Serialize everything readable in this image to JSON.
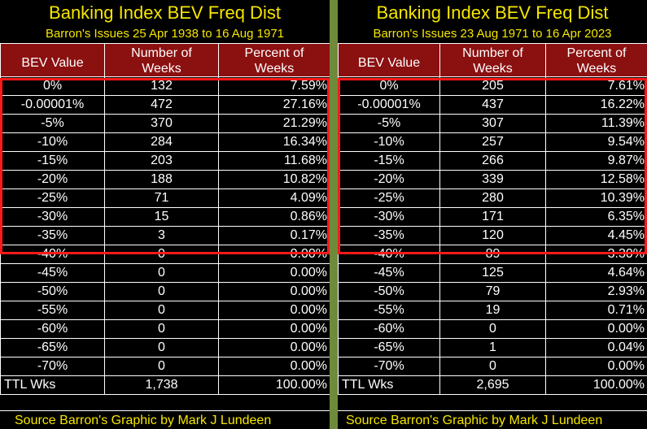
{
  "left": {
    "title": "Banking Index BEV Freq Dist",
    "subtitle": "Barron's Issues 25 Apr 1938 to 16 Aug 1971",
    "headers": {
      "bev": "BEV Value",
      "weeks_1": "Number of",
      "weeks_2": "Weeks",
      "pct_1": "Percent of",
      "pct_2": "Weeks"
    },
    "rows": [
      {
        "bev": "0%",
        "num": "132",
        "pct": "7.59%"
      },
      {
        "bev": "-0.00001%",
        "num": "472",
        "pct": "27.16%"
      },
      {
        "bev": "-5%",
        "num": "370",
        "pct": "21.29%"
      },
      {
        "bev": "-10%",
        "num": "284",
        "pct": "16.34%"
      },
      {
        "bev": "-15%",
        "num": "203",
        "pct": "11.68%"
      },
      {
        "bev": "-20%",
        "num": "188",
        "pct": "10.82%"
      },
      {
        "bev": "-25%",
        "num": "71",
        "pct": "4.09%"
      },
      {
        "bev": "-30%",
        "num": "15",
        "pct": "0.86%"
      },
      {
        "bev": "-35%",
        "num": "3",
        "pct": "0.17%"
      },
      {
        "bev": "-40%",
        "num": "0",
        "pct": "0.00%"
      },
      {
        "bev": "-45%",
        "num": "0",
        "pct": "0.00%"
      },
      {
        "bev": "-50%",
        "num": "0",
        "pct": "0.00%"
      },
      {
        "bev": "-55%",
        "num": "0",
        "pct": "0.00%"
      },
      {
        "bev": "-60%",
        "num": "0",
        "pct": "0.00%"
      },
      {
        "bev": "-65%",
        "num": "0",
        "pct": "0.00%"
      },
      {
        "bev": "-70%",
        "num": "0",
        "pct": "0.00%"
      }
    ],
    "total": {
      "label": "TTL Wks",
      "num": "1,738",
      "pct": "100.00%"
    },
    "footer": "Source Barron's  Graphic by Mark J Lundeen"
  },
  "right": {
    "title": "Banking Index BEV Freq Dist",
    "subtitle": "Barron's Issues 23 Aug 1971 to 16 Apr 2023",
    "headers": {
      "bev": "BEV Value",
      "weeks_1": "Number of",
      "weeks_2": "Weeks",
      "pct_1": "Percent of",
      "pct_2": "Weeks"
    },
    "rows": [
      {
        "bev": "0%",
        "num": "205",
        "pct": "7.61%"
      },
      {
        "bev": "-0.00001%",
        "num": "437",
        "pct": "16.22%"
      },
      {
        "bev": "-5%",
        "num": "307",
        "pct": "11.39%"
      },
      {
        "bev": "-10%",
        "num": "257",
        "pct": "9.54%"
      },
      {
        "bev": "-15%",
        "num": "266",
        "pct": "9.87%"
      },
      {
        "bev": "-20%",
        "num": "339",
        "pct": "12.58%"
      },
      {
        "bev": "-25%",
        "num": "280",
        "pct": "10.39%"
      },
      {
        "bev": "-30%",
        "num": "171",
        "pct": "6.35%"
      },
      {
        "bev": "-35%",
        "num": "120",
        "pct": "4.45%"
      },
      {
        "bev": "-40%",
        "num": "89",
        "pct": "3.30%"
      },
      {
        "bev": "-45%",
        "num": "125",
        "pct": "4.64%"
      },
      {
        "bev": "-50%",
        "num": "79",
        "pct": "2.93%"
      },
      {
        "bev": "-55%",
        "num": "19",
        "pct": "0.71%"
      },
      {
        "bev": "-60%",
        "num": "0",
        "pct": "0.00%"
      },
      {
        "bev": "-65%",
        "num": "1",
        "pct": "0.04%"
      },
      {
        "bev": "-70%",
        "num": "0",
        "pct": "0.00%"
      }
    ],
    "total": {
      "label": "TTL Wks",
      "num": "2,695",
      "pct": "100.00%"
    },
    "footer": "Source Barron's  Graphic by Mark J Lundeen"
  },
  "colors": {
    "title": "#f5e600",
    "header_bg": "#8b1010",
    "highlight_border": "#ff1a1a",
    "divider": "#6f8a3a",
    "background": "#000000"
  },
  "highlighted_rows": [
    "0%",
    "-0.00001%",
    "-5%",
    "-10%",
    "-15%",
    "-20%",
    "-25%",
    "-30%",
    "-35%"
  ]
}
